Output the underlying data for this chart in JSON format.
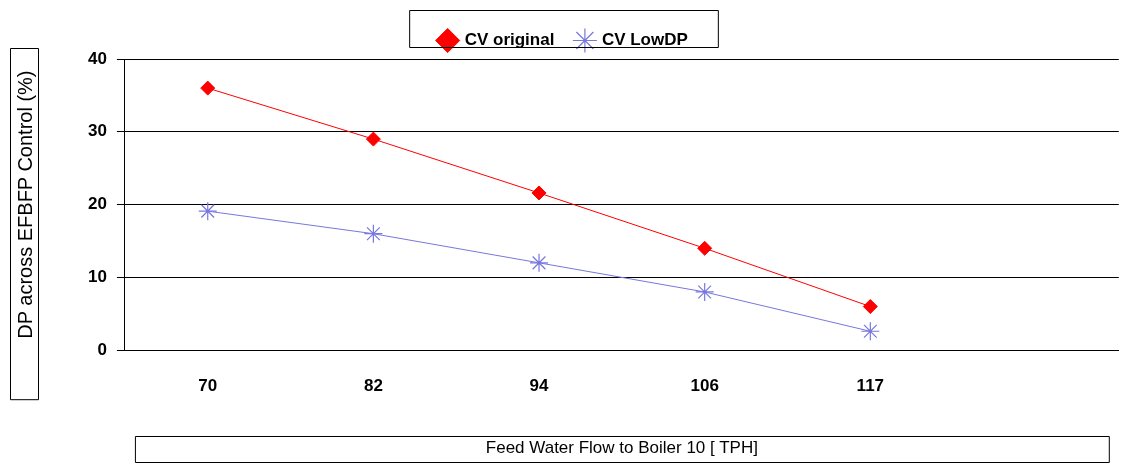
{
  "chart_data": {
    "type": "line",
    "xlabel": "Feed Water Flow to Boiler 10 [ TPH]",
    "ylabel": "DP across EFBFP Control (%)",
    "categories": [
      "70",
      "82",
      "94",
      "106",
      "117",
      null
    ],
    "ylim": [
      0,
      40
    ],
    "yticks": [
      0,
      10,
      20,
      30,
      40
    ],
    "grid": "y",
    "legend": "top",
    "series": [
      {
        "name": "CV original",
        "color": "#ff0000",
        "marker": "diamond",
        "values": [
          36,
          29,
          21.6,
          14,
          6,
          null
        ]
      },
      {
        "name": "CV LowDP",
        "color": "#7777dd",
        "marker": "cross",
        "values": [
          19.1,
          16,
          12,
          8,
          2.6,
          null
        ]
      }
    ]
  }
}
